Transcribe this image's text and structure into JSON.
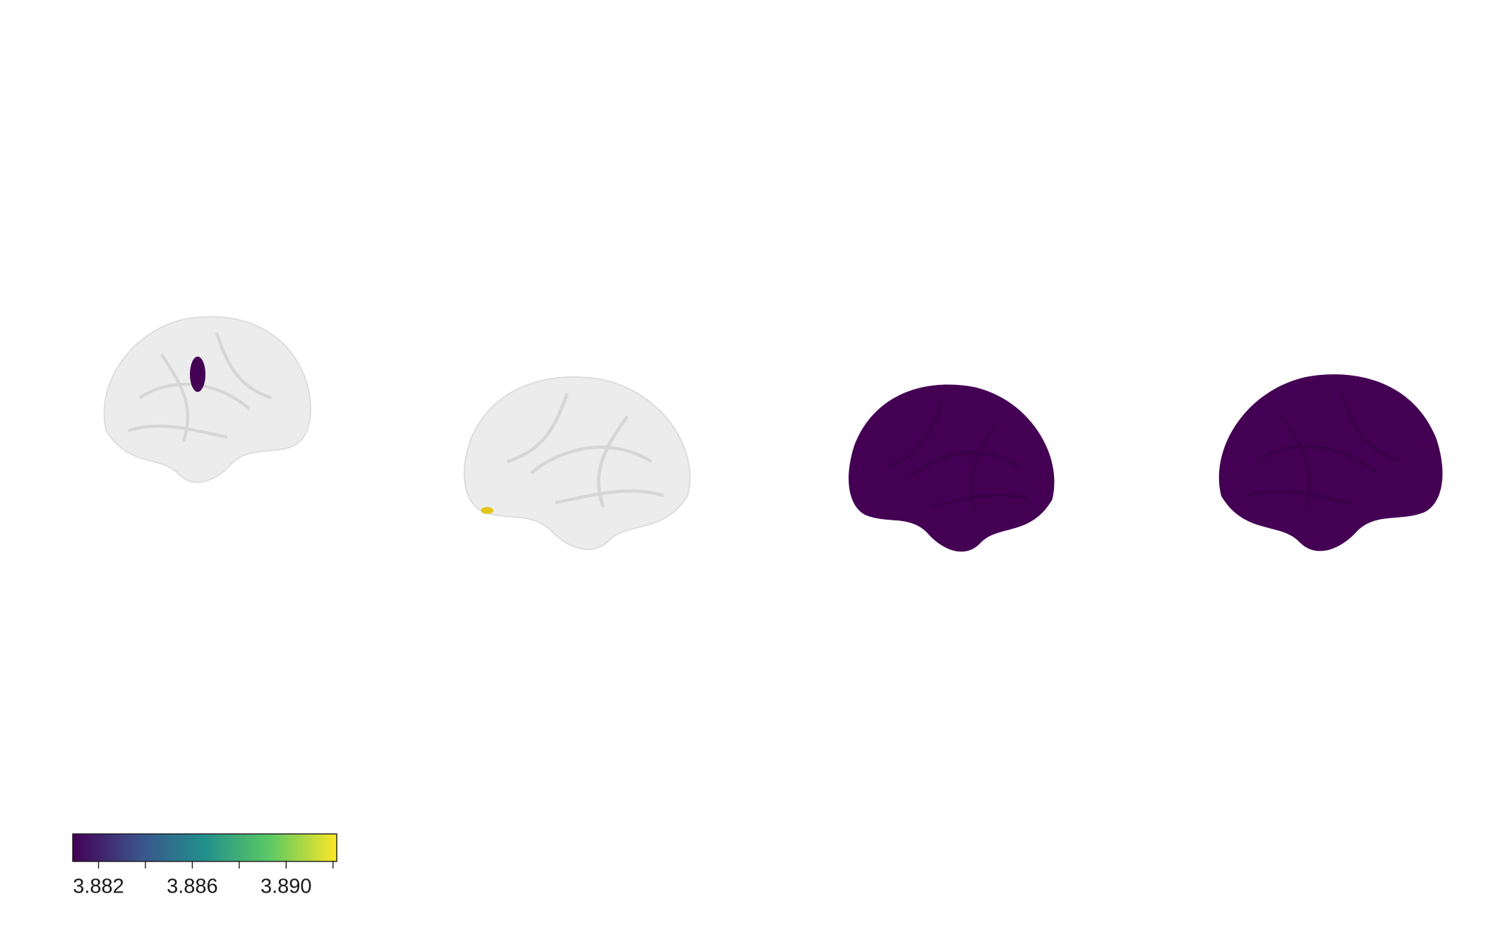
{
  "chart_data": {
    "type": "colorbar",
    "colorbar": {
      "lim": [
        3.8809,
        3.89216
      ],
      "ticks": [
        3.882,
        3.886,
        3.89
      ],
      "tick_labels": [
        "3.882",
        "3.886",
        "3.890"
      ],
      "minor_ticks": [
        3.884,
        3.888,
        3.892
      ],
      "colors": [
        "#440154",
        "#3b528b",
        "#21908c",
        "#5dc963",
        "#fde725"
      ]
    }
  }
}
